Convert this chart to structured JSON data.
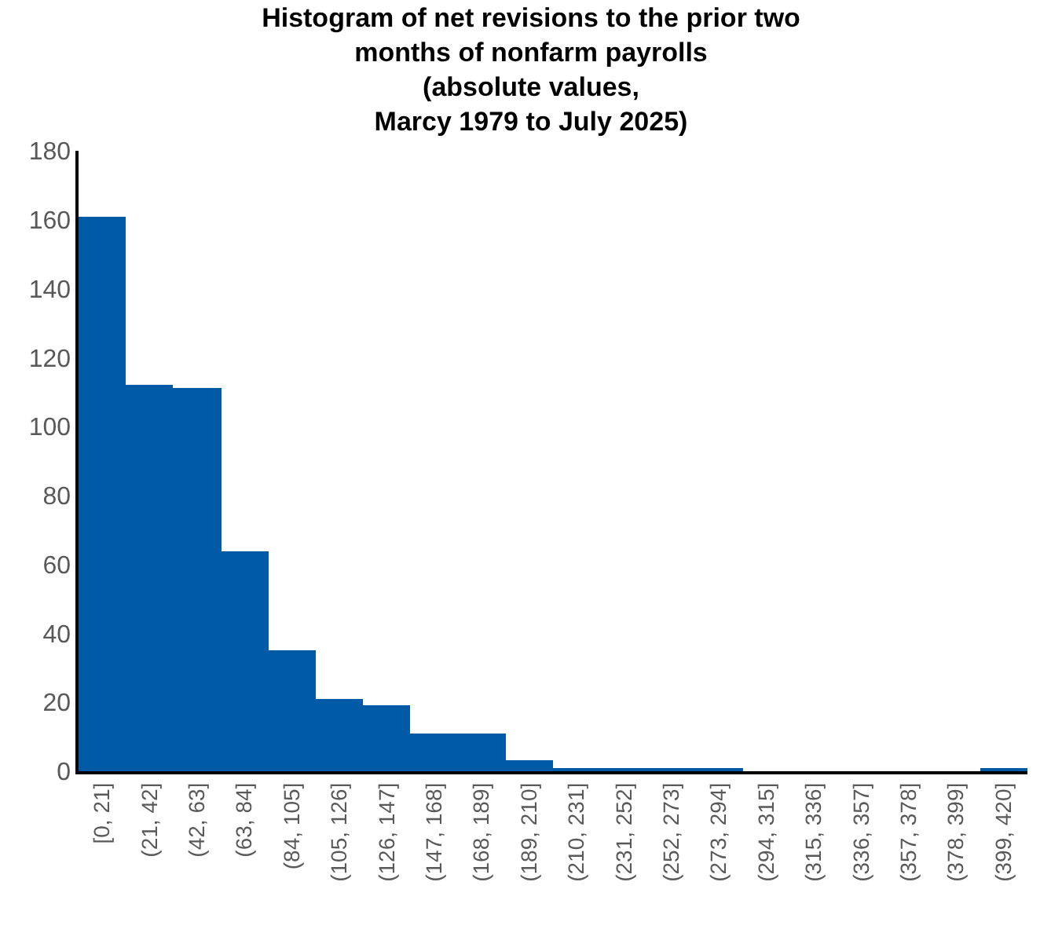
{
  "chart_data": {
    "type": "bar",
    "title": "Histogram of net revisions to the prior two\nmonths of nonfarm payrolls\n(absolute values,\nMarcy 1979 to July 2025)",
    "categories": [
      "[0, 21]",
      "(21, 42]",
      "(42, 63]",
      "(63, 84]",
      "(84, 105]",
      "(105, 126]",
      "(126, 147]",
      "(147, 168]",
      "(168, 189]",
      "(189, 210]",
      "(210, 231]",
      "(231, 252]",
      "(252, 273]",
      "(273, 294]",
      "(294, 315]",
      "(315, 336]",
      "(336, 357]",
      "(357, 378]",
      "(378, 399]",
      "(399, 420]"
    ],
    "values": [
      161,
      112,
      111,
      64,
      35,
      21,
      19,
      11,
      11,
      3,
      1,
      1,
      1,
      1,
      0,
      0,
      0,
      0,
      0,
      1
    ],
    "color": "#005aa5",
    "ylim": [
      0,
      180
    ],
    "yticks": [
      0,
      20,
      40,
      60,
      80,
      100,
      120,
      140,
      160,
      180
    ],
    "grid": false
  }
}
